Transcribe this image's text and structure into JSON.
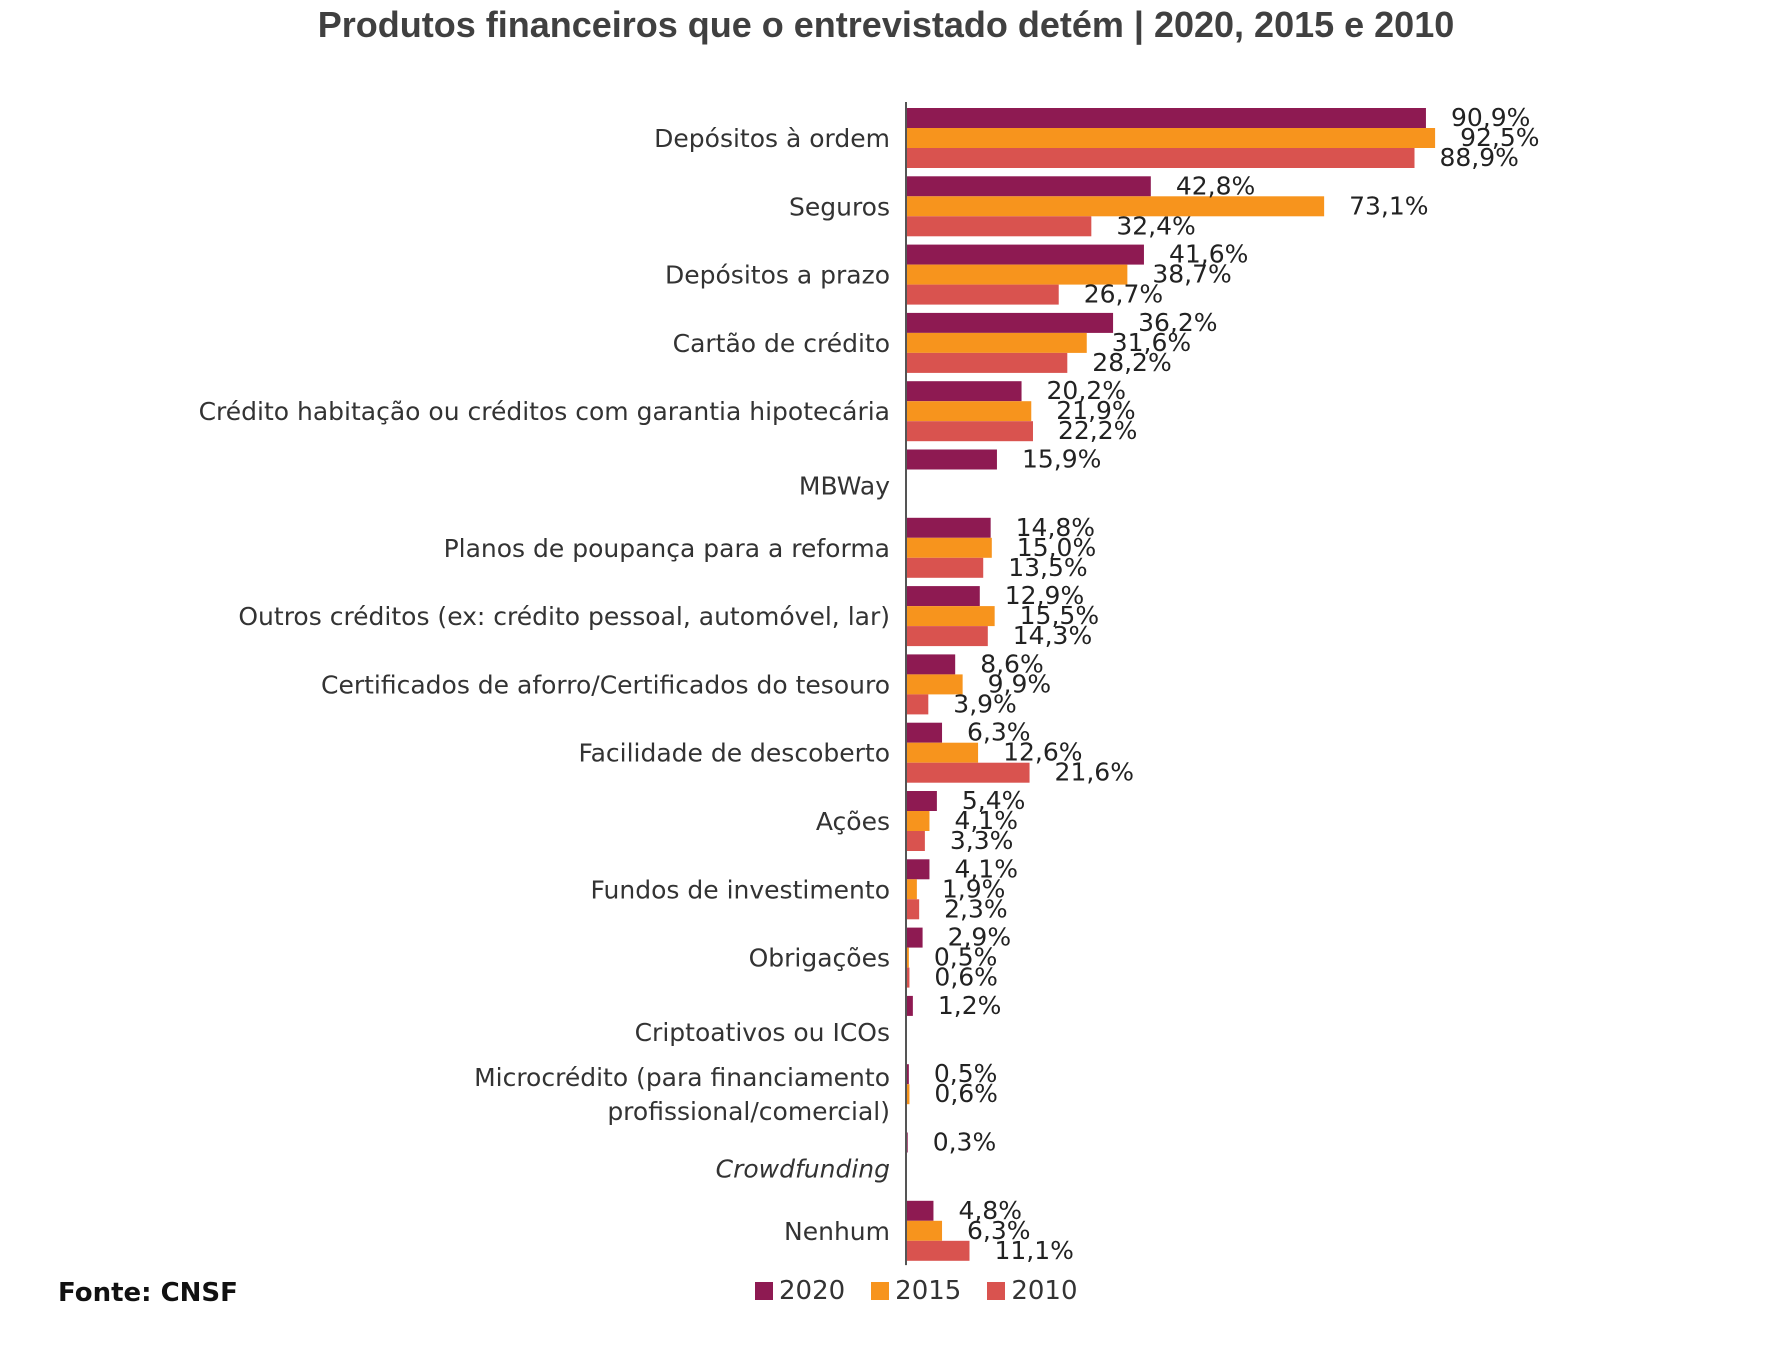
{
  "colors": {
    "2020": "#8e1a52",
    "2015": "#f7941d",
    "2010": "#d9534f",
    "axis": "#555555"
  },
  "source": "Fonte: CNSF",
  "chart_data": {
    "type": "bar",
    "orientation": "horizontal",
    "title": "Produtos financeiros que o entrevistado detém | 2020, 2015 e 2010",
    "xlim": [
      0,
      100
    ],
    "grid": false,
    "legend_position": "bottom",
    "categories": [
      "Depósitos à ordem",
      "Seguros",
      "Depósitos a prazo",
      "Cartão de crédito",
      "Crédito habitação ou créditos com garantia hipotecária",
      "MBWay",
      "Planos de poupança para a reforma",
      "Outros créditos (ex: crédito pessoal, automóvel, lar)",
      "Certificados de aforro/Certificados do tesouro",
      "Facilidade de descoberto",
      "Ações",
      "Fundos de investimento",
      "Obrigações",
      "Criptoativos ou ICOs",
      [
        "Microcrédito (para financiamento",
        "profissional/comercial)"
      ],
      "Crowdfunding",
      "Nenhum"
    ],
    "italic_categories": [
      "Crowdfunding"
    ],
    "series": [
      {
        "name": "2020",
        "values": [
          90.9,
          42.8,
          41.6,
          36.2,
          20.2,
          15.9,
          14.8,
          12.9,
          8.6,
          6.3,
          5.4,
          4.1,
          2.9,
          1.2,
          0.5,
          0.3,
          4.8
        ],
        "labels": [
          "90,9%",
          "42,8%",
          "41,6%",
          "36,2%",
          "20,2%",
          "15,9%",
          "14,8%",
          "12,9%",
          "8,6%",
          "6,3%",
          "5,4%",
          "4,1%",
          "2,9%",
          "1,2%",
          "0,5%",
          "0,3%",
          "4,8%"
        ]
      },
      {
        "name": "2015",
        "values": [
          92.5,
          73.1,
          38.7,
          31.6,
          21.9,
          null,
          15.0,
          15.5,
          9.9,
          12.6,
          4.1,
          1.9,
          0.5,
          null,
          0.6,
          null,
          6.3
        ],
        "labels": [
          "92,5%",
          "73,1%",
          "38,7%",
          "31,6%",
          "21,9%",
          null,
          "15,0%",
          "15,5%",
          "9,9%",
          "12,6%",
          "4,1%",
          "1,9%",
          "0,5%",
          null,
          "0,6%",
          null,
          "6,3%"
        ]
      },
      {
        "name": "2010",
        "values": [
          88.9,
          32.4,
          26.7,
          28.2,
          22.2,
          null,
          13.5,
          14.3,
          3.9,
          21.6,
          3.3,
          2.3,
          0.6,
          null,
          null,
          null,
          11.1
        ],
        "labels": [
          "88,9%",
          "32,4%",
          "26,7%",
          "28,2%",
          "22,2%",
          null,
          "13,5%",
          "14,3%",
          "3,9%",
          "21,6%",
          "3,3%",
          "2,3%",
          "0,6%",
          null,
          null,
          null,
          "11,1%"
        ]
      }
    ]
  }
}
